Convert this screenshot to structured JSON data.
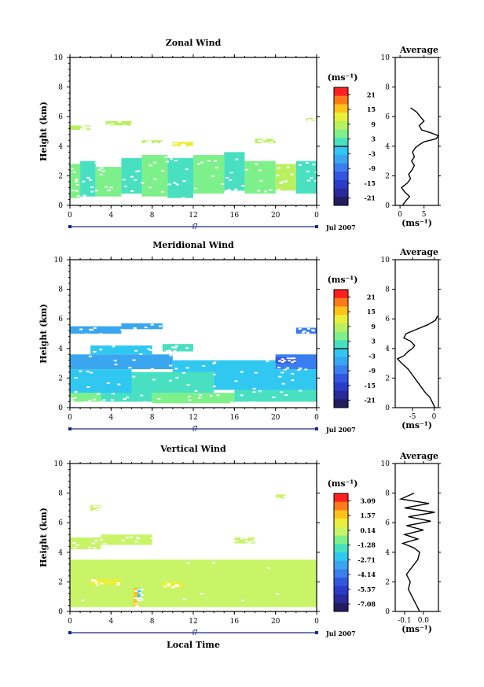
{
  "chart_data": [
    {
      "type": "heatmap",
      "title": "Zonal Wind",
      "ylabel": "Height (km)",
      "xlabel": "",
      "ylim": [
        0,
        10
      ],
      "xlim": [
        0,
        24
      ],
      "yticks": [
        "0",
        "2",
        "4",
        "6",
        "8",
        "10"
      ],
      "xticks": [
        "0",
        "4",
        "8",
        "12",
        "16",
        "20",
        "0"
      ],
      "date_mark": "7",
      "date_label": "Jul 2007",
      "colorbar": {
        "unit": "(ms⁻¹)",
        "ticks": [
          "21",
          "15",
          "9",
          "3",
          "-3",
          "-9",
          "-15",
          "-21"
        ],
        "zero_line": true,
        "colors": [
          "#ff2020",
          "#ff7a1a",
          "#ffc21a",
          "#e8f03c",
          "#b8f060",
          "#7ef08a",
          "#48e0c0",
          "#30c8f0",
          "#3aa6f0",
          "#3a7ef0",
          "#3356e0",
          "#2a3cc8",
          "#2a2a9a",
          "#231c5e"
        ]
      },
      "band_cells": [
        [
          0.0,
          1.0,
          0.5,
          2.8,
          "#7ef08a"
        ],
        [
          1.0,
          2.5,
          0.6,
          3.0,
          "#48e0c0"
        ],
        [
          2.5,
          5.0,
          0.6,
          2.6,
          "#7ef08a"
        ],
        [
          5.0,
          7.0,
          0.8,
          3.2,
          "#48e0c0"
        ],
        [
          7.0,
          9.5,
          0.6,
          3.4,
          "#7ef08a"
        ],
        [
          9.5,
          12.0,
          0.5,
          3.2,
          "#48e0c0"
        ],
        [
          12.0,
          15.0,
          0.8,
          3.4,
          "#7ef08a"
        ],
        [
          15.0,
          17.0,
          1.0,
          3.6,
          "#48e0c0"
        ],
        [
          17.0,
          20.0,
          0.8,
          3.0,
          "#7ef08a"
        ],
        [
          20.0,
          22.0,
          1.0,
          2.8,
          "#b8f060"
        ],
        [
          22.0,
          24.0,
          0.8,
          3.0,
          "#48e0c0"
        ],
        [
          0.0,
          2.0,
          5.1,
          5.4,
          "#b8f060"
        ],
        [
          3.5,
          6.0,
          5.4,
          5.7,
          "#b8f060"
        ],
        [
          7.0,
          9.0,
          4.2,
          4.4,
          "#b8f060"
        ],
        [
          10.0,
          12.0,
          4.0,
          4.3,
          "#e8f03c"
        ],
        [
          18.0,
          20.0,
          4.2,
          4.5,
          "#b8f060"
        ],
        [
          23.0,
          24.0,
          5.7,
          5.9,
          "#b8f060"
        ]
      ],
      "profile": {
        "title": "Average",
        "xlabel": "(ms⁻¹)",
        "xlim": [
          -1,
          8
        ],
        "xticks": [
          "0",
          "5"
        ],
        "yticks": [
          "0",
          "2",
          "4",
          "6",
          "8",
          "10"
        ],
        "x": [
          0.5,
          1.2,
          2.0,
          1.0,
          0.3,
          1.5,
          2.2,
          1.8,
          2.5,
          3.0,
          2.4,
          3.0,
          2.6,
          3.2,
          4.0,
          5.0,
          7.5,
          8.0,
          6.5,
          4.5,
          4.0,
          5.0,
          4.2,
          3.5,
          2.2
        ],
        "y": [
          0.0,
          0.3,
          0.6,
          0.9,
          1.2,
          1.5,
          1.8,
          2.1,
          2.4,
          2.7,
          3.0,
          3.3,
          3.6,
          3.9,
          4.1,
          4.3,
          4.5,
          4.7,
          4.9,
          5.1,
          5.4,
          5.7,
          6.0,
          6.3,
          6.6
        ]
      }
    },
    {
      "type": "heatmap",
      "title": "Meridional Wind",
      "ylabel": "Height (km)",
      "xlabel": "",
      "ylim": [
        0,
        10
      ],
      "xlim": [
        0,
        24
      ],
      "yticks": [
        "0",
        "2",
        "4",
        "6",
        "8",
        "10"
      ],
      "xticks": [
        "0",
        "4",
        "8",
        "12",
        "16",
        "20",
        "0"
      ],
      "date_mark": "7",
      "date_label": "Jul 2007",
      "colorbar": {
        "unit": "(ms⁻¹)",
        "ticks": [
          "21",
          "15",
          "9",
          "3",
          "-3",
          "-9",
          "-15",
          "-21"
        ],
        "zero_line": true,
        "colors": [
          "#ff2020",
          "#ff7a1a",
          "#ffc21a",
          "#e8f03c",
          "#b8f060",
          "#7ef08a",
          "#48e0c0",
          "#30c8f0",
          "#3aa6f0",
          "#3a7ef0",
          "#3356e0",
          "#2a3cc8",
          "#2a2a9a",
          "#231c5e"
        ]
      },
      "band_cells": [
        [
          0.0,
          3.0,
          0.4,
          1.0,
          "#7ef08a"
        ],
        [
          3.0,
          8.0,
          0.4,
          1.2,
          "#48e0c0"
        ],
        [
          8.0,
          16.0,
          0.3,
          1.0,
          "#7ef08a"
        ],
        [
          16.0,
          24.0,
          0.4,
          1.2,
          "#48e0c0"
        ],
        [
          0.0,
          6.0,
          1.0,
          2.6,
          "#30c8f0"
        ],
        [
          6.0,
          14.0,
          1.0,
          2.4,
          "#48e0c0"
        ],
        [
          14.0,
          24.0,
          1.2,
          2.6,
          "#30c8f0"
        ],
        [
          0.0,
          10.0,
          2.6,
          3.6,
          "#3aa6f0"
        ],
        [
          10.0,
          20.0,
          2.4,
          3.2,
          "#30c8f0"
        ],
        [
          20.0,
          24.0,
          2.6,
          3.6,
          "#3a7ef0"
        ],
        [
          2.0,
          8.0,
          3.6,
          4.2,
          "#30c8f0"
        ],
        [
          9.0,
          12.0,
          3.8,
          4.3,
          "#48e0c0"
        ],
        [
          0.0,
          5.0,
          5.0,
          5.5,
          "#3aa6f0"
        ],
        [
          5.0,
          9.0,
          5.3,
          5.7,
          "#3aa6f0"
        ],
        [
          22.0,
          24.0,
          5.0,
          5.4,
          "#3a7ef0"
        ],
        [
          20.0,
          22.0,
          3.0,
          3.4,
          "#3356e0"
        ]
      ],
      "profile": {
        "title": "Average",
        "xlabel": "(ms⁻¹)",
        "xlim": [
          -9,
          1
        ],
        "xticks": [
          "-5",
          "0"
        ],
        "yticks": [
          "0",
          "2",
          "4",
          "6",
          "8",
          "10"
        ],
        "x": [
          0.2,
          -0.3,
          -1.0,
          -2.0,
          -3.0,
          -4.0,
          -5.0,
          -6.0,
          -7.5,
          -8.5,
          -7.0,
          -6.0,
          -5.0,
          -4.5,
          -5.5,
          -7.0,
          -6.5,
          -4.0,
          -1.5,
          0.3,
          0.8
        ],
        "y": [
          0.0,
          0.3,
          0.7,
          1.0,
          1.4,
          1.8,
          2.2,
          2.6,
          3.0,
          3.3,
          3.5,
          3.8,
          4.0,
          4.2,
          4.5,
          4.7,
          5.0,
          5.3,
          5.6,
          5.9,
          6.2
        ]
      }
    },
    {
      "type": "heatmap",
      "title": "Vertical Wind",
      "ylabel": "Height (km)",
      "xlabel": "Local Time",
      "ylim": [
        0,
        10
      ],
      "xlim": [
        0,
        24
      ],
      "yticks": [
        "0",
        "2",
        "4",
        "6",
        "8",
        "10"
      ],
      "xticks": [
        "0",
        "4",
        "8",
        "12",
        "16",
        "20",
        "0"
      ],
      "date_mark": "7",
      "date_label": "Jul 2007",
      "colorbar": {
        "unit": "(ms⁻¹)",
        "ticks": [
          "3.09",
          "1.57",
          "0.14",
          "-1.28",
          "-2.71",
          "-4.14",
          "-5.57",
          "-7.08"
        ],
        "zero_line": false,
        "colors": [
          "#ff2020",
          "#ff7a1a",
          "#ffc21a",
          "#e8f03c",
          "#c8f468",
          "#7ef08a",
          "#48e0c0",
          "#30c8f0",
          "#3aa6f0",
          "#3a7ef0",
          "#3356e0",
          "#2a3cc8",
          "#2a2a9a",
          "#231c5e"
        ]
      },
      "band_cells": [
        [
          0.0,
          24.0,
          0.3,
          3.5,
          "#c8f468"
        ],
        [
          0.0,
          3.0,
          4.2,
          5.0,
          "#c8f468"
        ],
        [
          3.0,
          8.0,
          4.5,
          5.2,
          "#c8f468"
        ],
        [
          6.2,
          6.6,
          0.3,
          1.6,
          "#ffc21a"
        ],
        [
          6.6,
          6.9,
          0.8,
          1.6,
          "#30c8f0"
        ],
        [
          16.0,
          18.0,
          4.6,
          5.0,
          "#c8f468"
        ],
        [
          2.0,
          3.0,
          6.8,
          7.2,
          "#c8f468"
        ],
        [
          20.0,
          21.0,
          7.6,
          7.9,
          "#c8f468"
        ],
        [
          2.0,
          5.0,
          1.8,
          2.2,
          "#e8f03c"
        ],
        [
          9.0,
          11.0,
          1.6,
          2.0,
          "#e8f03c"
        ]
      ],
      "profile": {
        "title": "Average",
        "xlabel": "(ms⁻¹)",
        "xlim": [
          -0.15,
          0.08
        ],
        "xticks": [
          "-0.1",
          "0.0"
        ],
        "yticks": [
          "0",
          "2",
          "4",
          "6",
          "8",
          "10"
        ],
        "x": [
          -0.02,
          -0.04,
          -0.06,
          -0.08,
          -0.07,
          -0.09,
          -0.06,
          -0.03,
          -0.02,
          -0.05,
          -0.11,
          -0.03,
          -0.1,
          0.0,
          -0.09,
          0.04,
          -0.08,
          0.06,
          -0.1,
          0.03,
          -0.12,
          -0.05
        ],
        "y": [
          0.0,
          0.5,
          1.0,
          1.5,
          2.0,
          2.5,
          3.0,
          3.5,
          4.0,
          4.3,
          4.6,
          4.9,
          5.2,
          5.5,
          5.8,
          6.1,
          6.4,
          6.7,
          7.0,
          7.3,
          7.6,
          8.0
        ]
      }
    }
  ]
}
